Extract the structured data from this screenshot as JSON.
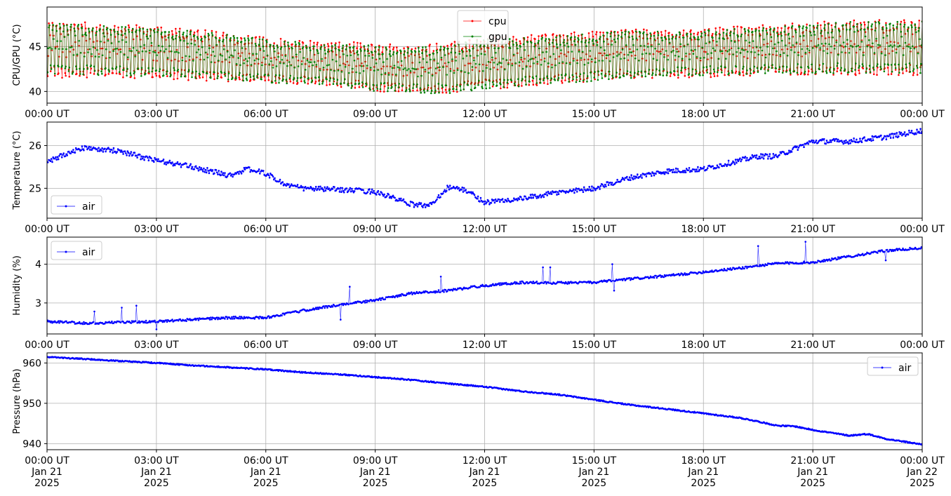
{
  "chart_data": [
    {
      "type": "line",
      "ylabel": "CPU/GPU (°C)",
      "ylim": [
        38.7,
        49.4
      ],
      "yticks": [
        40,
        45
      ],
      "xlim": [
        0,
        24
      ],
      "x_unit": "hours since 00:00 UT Jan 21 2025",
      "xtick_labels": [
        "00:00 UT",
        "03:00 UT",
        "06:00 UT",
        "09:00 UT",
        "12:00 UT",
        "15:00 UT",
        "18:00 UT",
        "21:00 UT",
        "00:00 UT"
      ],
      "grid": true,
      "legend": "top-center",
      "series": [
        {
          "name": "cpu",
          "color": "#ff0000",
          "style": "oscillating",
          "x": [
            0,
            2,
            4,
            6,
            8,
            9,
            10,
            11,
            12,
            14,
            16,
            18,
            20,
            22,
            24
          ],
          "low": [
            41.5,
            41.5,
            41.2,
            41.0,
            40.5,
            40.0,
            39.8,
            39.8,
            40.2,
            40.8,
            41.5,
            41.5,
            41.8,
            41.8,
            41.8
          ],
          "high": [
            48.0,
            47.5,
            47.0,
            46.0,
            45.5,
            45.5,
            45.0,
            45.5,
            46.0,
            46.5,
            47.0,
            47.0,
            47.5,
            48.0,
            48.0
          ]
        },
        {
          "name": "gpu",
          "color": "#008000",
          "style": "oscillating",
          "x": [
            0,
            2,
            4,
            6,
            8,
            9,
            10,
            11,
            12,
            14,
            16,
            18,
            20,
            22,
            24
          ],
          "low": [
            41.8,
            41.8,
            41.5,
            41.0,
            40.5,
            40.0,
            39.8,
            39.8,
            40.2,
            40.8,
            41.5,
            41.8,
            42.0,
            42.0,
            42.0
          ],
          "high": [
            47.8,
            47.2,
            46.8,
            45.8,
            45.2,
            45.2,
            44.8,
            45.2,
            45.8,
            46.2,
            46.8,
            46.8,
            47.2,
            47.8,
            47.8
          ]
        }
      ]
    },
    {
      "type": "line",
      "ylabel": "Temperature (°C)",
      "ylim": [
        24.3,
        26.55
      ],
      "yticks": [
        25,
        26
      ],
      "xlim": [
        0,
        24
      ],
      "xtick_labels": [
        "00:00 UT",
        "03:00 UT",
        "06:00 UT",
        "09:00 UT",
        "12:00 UT",
        "15:00 UT",
        "18:00 UT",
        "21:00 UT",
        "00:00 UT"
      ],
      "grid": true,
      "legend": "bottom-left",
      "series": [
        {
          "name": "air",
          "color": "#0000ff",
          "x": [
            0,
            0.5,
            1,
            1.5,
            2,
            2.5,
            3,
            4,
            5,
            5.5,
            6,
            6.5,
            7,
            8,
            9,
            10,
            10.5,
            11,
            11.5,
            12,
            13,
            14,
            15,
            16,
            17,
            18,
            19,
            19.5,
            20,
            21,
            22,
            23,
            24
          ],
          "y": [
            25.6,
            25.8,
            25.95,
            25.9,
            25.88,
            25.75,
            25.65,
            25.5,
            25.3,
            25.45,
            25.35,
            25.1,
            25.0,
            24.97,
            24.92,
            24.62,
            24.6,
            25.03,
            24.95,
            24.67,
            24.75,
            24.9,
            25.0,
            25.25,
            25.4,
            25.45,
            25.65,
            25.75,
            25.75,
            26.1,
            26.1,
            26.2,
            26.35
          ],
          "noise": 0.06
        }
      ]
    },
    {
      "type": "line",
      "ylabel": "Humidity (%)",
      "ylim": [
        2.2,
        4.7
      ],
      "yticks": [
        3,
        4
      ],
      "xlim": [
        0,
        24
      ],
      "xtick_labels": [
        "00:00 UT",
        "03:00 UT",
        "06:00 UT",
        "09:00 UT",
        "12:00 UT",
        "15:00 UT",
        "18:00 UT",
        "21:00 UT",
        "00:00 UT"
      ],
      "grid": true,
      "legend": "top-left",
      "series": [
        {
          "name": "air",
          "color": "#0000ff",
          "x": [
            0,
            1,
            2,
            3,
            4,
            5,
            6,
            7,
            8,
            9,
            10,
            11,
            12,
            13,
            14,
            15,
            16,
            17,
            18,
            19,
            20,
            21,
            22,
            23,
            24
          ],
          "y": [
            2.52,
            2.48,
            2.5,
            2.52,
            2.57,
            2.62,
            2.62,
            2.8,
            2.95,
            3.07,
            3.25,
            3.32,
            3.45,
            3.53,
            3.52,
            3.53,
            3.62,
            3.7,
            3.8,
            3.9,
            4.02,
            4.05,
            4.2,
            4.35,
            4.42
          ],
          "noise": 0.03,
          "spikes": [
            [
              1.3,
              2.78
            ],
            [
              2.05,
              2.88
            ],
            [
              2.45,
              2.93
            ],
            [
              3.0,
              2.32
            ],
            [
              8.3,
              3.42
            ],
            [
              8.05,
              2.57
            ],
            [
              10.8,
              3.68
            ],
            [
              13.6,
              3.92
            ],
            [
              13.8,
              3.92
            ],
            [
              15.5,
              4.0
            ],
            [
              15.55,
              3.32
            ],
            [
              19.5,
              4.47
            ],
            [
              20.8,
              4.58
            ],
            [
              23.0,
              4.1
            ]
          ]
        }
      ]
    },
    {
      "type": "line",
      "ylabel": "Pressure (hPa)",
      "ylim": [
        938.5,
        962.5
      ],
      "yticks": [
        940,
        950,
        960
      ],
      "xlim": [
        0,
        24
      ],
      "xtick_labels": [
        "00:00 UT\nJan 21\n2025",
        "03:00 UT\nJan 21\n2025",
        "06:00 UT\nJan 21\n2025",
        "09:00 UT\nJan 21\n2025",
        "12:00 UT\nJan 21\n2025",
        "15:00 UT\nJan 21\n2025",
        "18:00 UT\nJan 21\n2025",
        "21:00 UT\nJan 21\n2025",
        "00:00 UT\nJan 22\n2025"
      ],
      "grid": true,
      "legend": "top-right",
      "series": [
        {
          "name": "air",
          "color": "#0000ff",
          "x": [
            0,
            1,
            2,
            3,
            4,
            5,
            6,
            7,
            8,
            9,
            10,
            11,
            12,
            13,
            14,
            15,
            16,
            17,
            18,
            19,
            19.5,
            20,
            20.5,
            21,
            22,
            22.5,
            23,
            24
          ],
          "y": [
            961.5,
            961.0,
            960.5,
            960.0,
            959.4,
            958.9,
            958.4,
            957.7,
            957.2,
            956.5,
            955.8,
            954.9,
            954.1,
            953.0,
            952.2,
            950.9,
            949.6,
            948.6,
            947.5,
            946.4,
            945.5,
            944.5,
            944.3,
            943.4,
            942.0,
            942.4,
            941.2,
            939.8
          ],
          "noise": 0.15
        }
      ]
    }
  ]
}
